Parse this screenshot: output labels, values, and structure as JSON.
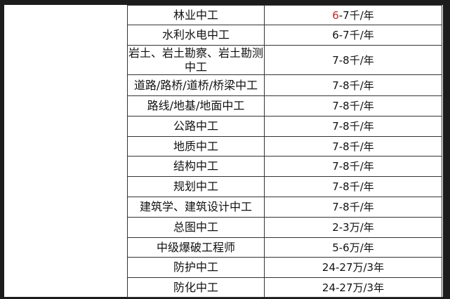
{
  "table": {
    "rows": [
      {
        "name": "林业中工",
        "pay_highlight": "6",
        "pay": "-7千/年"
      },
      {
        "name": "水利水电中工",
        "pay": "6-7千/年"
      },
      {
        "name": "岩土、岩土勘察、岩土勘测中工",
        "pay": "7-8千/年"
      },
      {
        "name": "道路/路桥/道桥/桥梁中工",
        "pay": "7-8千/年"
      },
      {
        "name": "路线/地基/地面中工",
        "pay": "7-8千/年"
      },
      {
        "name": "公路中工",
        "pay": "7-8千/年"
      },
      {
        "name": "地质中工",
        "pay": "7-8千/年"
      },
      {
        "name": "结构中工",
        "pay": "7-8千/年"
      },
      {
        "name": "规划中工",
        "pay": "7-8千/年"
      },
      {
        "name": "建筑学、建筑设计中工",
        "pay": "7-8千/年"
      },
      {
        "name": "总图中工",
        "pay": "2-3万/年"
      },
      {
        "name": "中级爆破工程师",
        "pay": "5-6万/年"
      },
      {
        "name": "防护中工",
        "pay": "24-27万/3年"
      },
      {
        "name": "防化中工",
        "pay": "24-27万/3年"
      }
    ]
  },
  "colors": {
    "highlight": "#c0282a",
    "frame": "#1c1c1c"
  }
}
